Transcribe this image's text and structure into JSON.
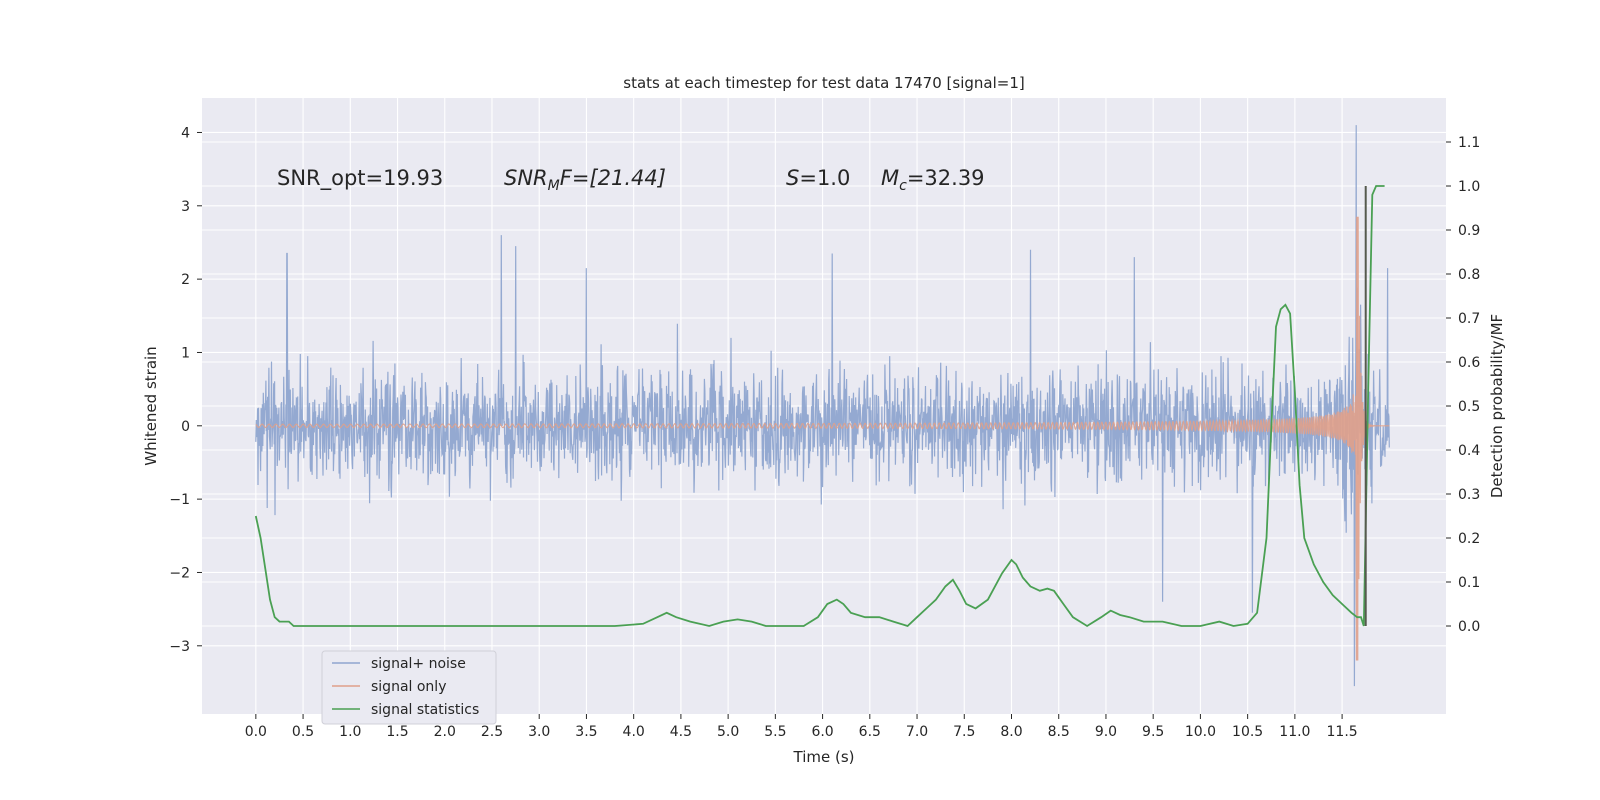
{
  "chart_data": {
    "type": "line",
    "title": "stats at each timestep for test data 17470 [signal=1]",
    "xlabel": "Time (s)",
    "ylabel_left": "Whitened strain",
    "ylabel_right": "Detection probability/MF",
    "xlim": [
      -0.57,
      12.6
    ],
    "ylim_left": [
      -3.93,
      4.47
    ],
    "ylim_right": [
      -0.2,
      1.2
    ],
    "x_ticks": [
      0.0,
      0.5,
      1.0,
      1.5,
      2.0,
      2.5,
      3.0,
      3.5,
      4.0,
      4.5,
      5.0,
      5.5,
      6.0,
      6.5,
      7.0,
      7.5,
      8.0,
      8.5,
      9.0,
      9.5,
      10.0,
      10.5,
      11.0,
      11.5
    ],
    "x_tick_labels": [
      "0.0",
      "0.5",
      "1.0",
      "1.5",
      "2.0",
      "2.5",
      "3.0",
      "3.5",
      "4.0",
      "4.5",
      "5.0",
      "5.5",
      "6.0",
      "6.5",
      "7.0",
      "7.5",
      "8.0",
      "8.5",
      "9.0",
      "9.5",
      "10.0",
      "10.5",
      "11.0",
      "11.5"
    ],
    "y_left_ticks": [
      -3,
      -2,
      -1,
      0,
      1,
      2,
      3,
      4
    ],
    "y_left_tick_labels": [
      "−3",
      "−2",
      "−1",
      "0",
      "1",
      "2",
      "3",
      "4"
    ],
    "y_right_ticks": [
      0.0,
      0.1,
      0.2,
      0.3,
      0.4,
      0.5,
      0.6,
      0.7,
      0.8,
      0.9,
      1.0,
      1.1
    ],
    "y_right_tick_labels": [
      "0.0",
      "0.1",
      "0.2",
      "0.3",
      "0.4",
      "0.5",
      "0.6",
      "0.7",
      "0.8",
      "0.9",
      "1.0",
      "1.1"
    ],
    "grid": true,
    "legend_position": "lower-left",
    "annotations": {
      "snr_opt": "SNR_opt=19.93",
      "snr_mf_base": "SNR",
      "snr_mf_sub": "M",
      "snr_mf_rest": "F=[21.44]",
      "s_var": "S",
      "s_val": "=1.0",
      "mc_var": "M",
      "mc_sub": "c",
      "mc_val": "=32.39"
    },
    "series": [
      {
        "name": "signal+ noise",
        "axis": "left",
        "color": "#8fa5cf",
        "style": "noise",
        "x_range": [
          0.0,
          12.0
        ],
        "typical_envelope": [
          -1.6,
          1.6
        ],
        "peak": {
          "x": 11.65,
          "y_max": 4.1,
          "y_min": -3.55
        },
        "notable_spikes": [
          {
            "x": 0.33,
            "y": 2.35
          },
          {
            "x": 2.6,
            "y": 2.6
          },
          {
            "x": 2.75,
            "y": 2.45
          },
          {
            "x": 3.5,
            "y": 2.15
          },
          {
            "x": 6.1,
            "y": 2.35
          },
          {
            "x": 8.2,
            "y": 2.4
          },
          {
            "x": 9.3,
            "y": 2.3
          },
          {
            "x": 9.6,
            "y": -2.4
          },
          {
            "x": 10.55,
            "y": -2.55
          },
          {
            "x": 11.98,
            "y": 2.15
          }
        ]
      },
      {
        "name": "signal only",
        "axis": "left",
        "color": "#e0a08a",
        "style": "chirp",
        "x_range": [
          0.0,
          12.0
        ],
        "merger_x": 11.67,
        "amplitude_peak": 2.85,
        "amplitude_min": -3.2
      },
      {
        "name": "signal statistics",
        "axis": "right",
        "color": "#4aa053",
        "style": "line",
        "x": [
          0.0,
          0.05,
          0.1,
          0.15,
          0.2,
          0.25,
          0.3,
          0.35,
          0.4,
          0.5,
          0.7,
          1.0,
          1.5,
          1.8,
          2.0,
          2.3,
          2.6,
          3.0,
          3.4,
          3.8,
          4.1,
          4.25,
          4.35,
          4.45,
          4.6,
          4.8,
          4.95,
          5.1,
          5.25,
          5.4,
          5.6,
          5.8,
          5.95,
          6.05,
          6.15,
          6.22,
          6.3,
          6.45,
          6.6,
          6.75,
          6.9,
          7.0,
          7.1,
          7.2,
          7.3,
          7.38,
          7.45,
          7.52,
          7.62,
          7.75,
          7.9,
          8.0,
          8.05,
          8.12,
          8.2,
          8.3,
          8.38,
          8.45,
          8.55,
          8.65,
          8.8,
          8.95,
          9.05,
          9.15,
          9.25,
          9.4,
          9.6,
          9.8,
          10.0,
          10.2,
          10.35,
          10.5,
          10.6,
          10.7,
          10.75,
          10.8,
          10.85,
          10.9,
          10.95,
          11.0,
          11.05,
          11.1,
          11.2,
          11.3,
          11.4,
          11.5,
          11.6,
          11.66,
          11.7,
          11.73,
          11.78,
          11.82,
          11.86,
          11.9,
          11.95
        ],
        "values": [
          0.25,
          0.2,
          0.13,
          0.06,
          0.02,
          0.01,
          0.01,
          0.01,
          0.0,
          0.0,
          0.0,
          0.0,
          0.0,
          0.0,
          0.0,
          0.0,
          0.0,
          0.0,
          0.0,
          0.0,
          0.005,
          0.02,
          0.03,
          0.02,
          0.01,
          0.0,
          0.01,
          0.015,
          0.01,
          0.0,
          0.0,
          0.0,
          0.02,
          0.05,
          0.06,
          0.05,
          0.03,
          0.02,
          0.02,
          0.01,
          0.0,
          0.02,
          0.04,
          0.06,
          0.09,
          0.105,
          0.08,
          0.05,
          0.04,
          0.06,
          0.12,
          0.15,
          0.14,
          0.11,
          0.09,
          0.08,
          0.085,
          0.08,
          0.05,
          0.02,
          0.0,
          0.02,
          0.035,
          0.025,
          0.02,
          0.01,
          0.01,
          0.0,
          0.0,
          0.01,
          0.0,
          0.005,
          0.03,
          0.2,
          0.45,
          0.68,
          0.72,
          0.73,
          0.71,
          0.53,
          0.32,
          0.2,
          0.14,
          0.1,
          0.07,
          0.05,
          0.03,
          0.02,
          0.02,
          0.0,
          0.57,
          0.98,
          1.0,
          1.0,
          1.0
        ]
      },
      {
        "name": "",
        "axis": "right",
        "color": "#565a4e",
        "style": "vertical-line",
        "x": 11.75,
        "range": [
          0.0,
          1.0
        ]
      }
    ]
  }
}
